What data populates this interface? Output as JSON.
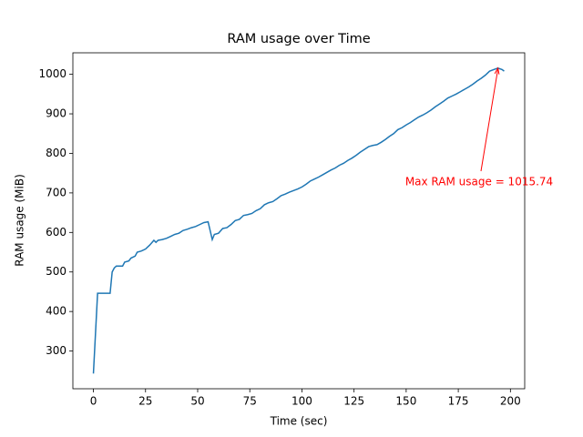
{
  "chart_data": {
    "type": "line",
    "title": "RAM usage over Time",
    "xlabel": "Time (sec)",
    "ylabel": "RAM usage (MiB)",
    "x": [
      0,
      2,
      8,
      9,
      10,
      11,
      14,
      15,
      17,
      18,
      20,
      21,
      23,
      25,
      27,
      29,
      30,
      31,
      33,
      35,
      37,
      39,
      41,
      43,
      45,
      47,
      49,
      51,
      53,
      55,
      57,
      58,
      60,
      62,
      64,
      66,
      68,
      70,
      72,
      74,
      76,
      78,
      80,
      82,
      84,
      86,
      88,
      90,
      92,
      94,
      96,
      98,
      100,
      102,
      104,
      106,
      108,
      110,
      112,
      114,
      116,
      118,
      120,
      122,
      124,
      126,
      128,
      130,
      132,
      134,
      136,
      138,
      140,
      142,
      144,
      146,
      148,
      150,
      152,
      154,
      156,
      158,
      160,
      162,
      164,
      166,
      168,
      170,
      172,
      174,
      176,
      178,
      180,
      182,
      184,
      186,
      188,
      190,
      192,
      194,
      196,
      197
    ],
    "series": [
      {
        "name": "RAM usage",
        "color": "#1f77b4",
        "values": [
          243,
          446,
          446,
          500,
          510,
          515,
          515,
          525,
          528,
          535,
          540,
          550,
          553,
          558,
          568,
          580,
          575,
          580,
          582,
          585,
          590,
          595,
          598,
          605,
          608,
          612,
          615,
          620,
          625,
          627,
          582,
          595,
          598,
          610,
          612,
          620,
          630,
          633,
          643,
          645,
          648,
          655,
          660,
          670,
          675,
          678,
          685,
          693,
          697,
          702,
          706,
          710,
          715,
          722,
          730,
          735,
          740,
          746,
          752,
          758,
          763,
          770,
          775,
          782,
          788,
          795,
          803,
          810,
          817,
          820,
          822,
          828,
          835,
          843,
          850,
          860,
          865,
          872,
          878,
          885,
          892,
          897,
          903,
          910,
          918,
          925,
          932,
          940,
          945,
          950,
          956,
          962,
          968,
          975,
          983,
          990,
          998,
          1008,
          1012,
          1015.74,
          1012,
          1008
        ]
      }
    ],
    "annotation": {
      "text": "Max RAM usage = 1015.74",
      "color": "#ff0000"
    },
    "xlim": [
      -9.85,
      206.85
    ],
    "ylim": [
      204.6,
      1054.4
    ],
    "xticks": [
      0,
      25,
      50,
      75,
      100,
      125,
      150,
      175,
      200
    ],
    "yticks": [
      300,
      400,
      500,
      600,
      700,
      800,
      900,
      1000
    ]
  }
}
